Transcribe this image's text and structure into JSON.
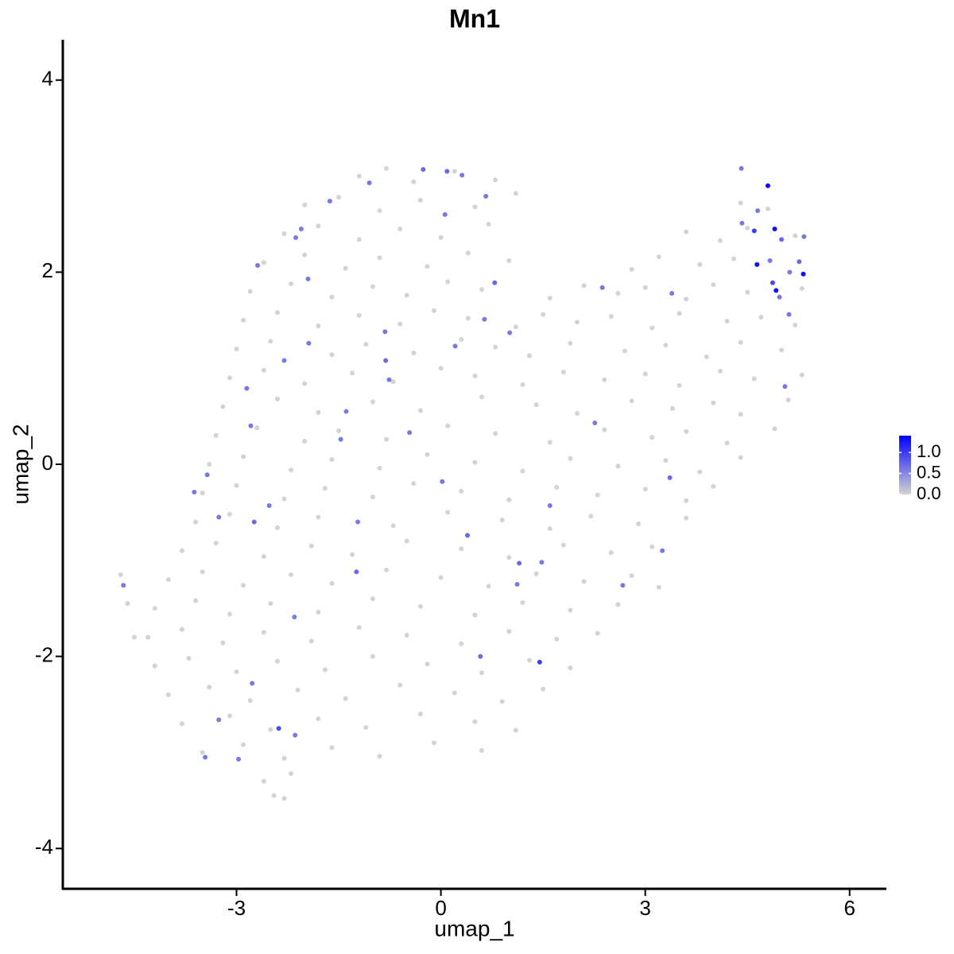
{
  "chart_data": {
    "type": "scatter",
    "title": "Mn1",
    "x_label": "umap_1",
    "y_label": "umap_2",
    "xlim": [
      -5.55,
      6.54
    ],
    "ylim": [
      -4.42,
      4.42
    ],
    "xticks": [
      -3,
      0,
      3,
      6
    ],
    "yticks": [
      -4,
      -2,
      0,
      2,
      4
    ],
    "color_low": "#d3d3d3",
    "color_high": "#0000ff",
    "colorbar_lim": [
      0,
      1.4
    ],
    "colorbar_ticks": [
      {
        "value": 0,
        "label": "0.0"
      },
      {
        "value": 0.5,
        "label": "0.5"
      },
      {
        "value": 1,
        "label": "1.0"
      }
    ],
    "x": [
      -1.2,
      -0.8,
      -0.4,
      0.2,
      0.8,
      -2.0,
      -1.5,
      -0.9,
      -0.3,
      0.5,
      1.1,
      4.4,
      4.8,
      -2.3,
      -1.8,
      -1.2,
      -0.6,
      0.0,
      0.7,
      3.6,
      4.1,
      4.5,
      5.2,
      -2.6,
      -2.0,
      -1.4,
      -0.9,
      -0.2,
      0.4,
      1.0,
      2.8,
      3.2,
      3.8,
      4.3,
      -2.8,
      -2.2,
      -1.6,
      -1.0,
      -0.5,
      0.1,
      0.6,
      1.6,
      2.1,
      2.6,
      3.0,
      3.6,
      4.0,
      4.5,
      5.3,
      -2.9,
      -2.4,
      -1.8,
      -1.2,
      -0.6,
      -0.1,
      0.4,
      1.1,
      1.5,
      2.0,
      2.5,
      3.1,
      3.5,
      4.2,
      4.7,
      5.2,
      -3.0,
      -2.5,
      -1.6,
      -1.1,
      -0.4,
      0.3,
      0.8,
      1.3,
      1.9,
      2.7,
      3.3,
      3.9,
      4.4,
      5.0,
      -3.1,
      -2.6,
      -2.0,
      -1.3,
      -0.7,
      0.0,
      0.5,
      1.2,
      1.8,
      2.4,
      3.0,
      3.5,
      4.1,
      4.6,
      5.3,
      -3.2,
      -2.4,
      -1.8,
      -1.0,
      -0.3,
      0.6,
      1.4,
      2.0,
      2.8,
      3.4,
      4.0,
      4.4,
      5.1,
      -3.3,
      -2.7,
      -2.0,
      -1.5,
      -0.8,
      0.1,
      0.8,
      1.6,
      2.4,
      3.1,
      3.6,
      4.2,
      4.9,
      -3.4,
      -2.9,
      -2.2,
      -1.6,
      -0.9,
      -0.2,
      0.5,
      1.2,
      1.9,
      2.6,
      3.3,
      3.8,
      4.4,
      -3.5,
      -3.0,
      -2.3,
      -1.7,
      -1.0,
      -0.4,
      0.3,
      1.0,
      1.7,
      2.3,
      3.0,
      3.6,
      4.0,
      -3.6,
      -3.1,
      -2.4,
      -1.8,
      -0.7,
      0.1,
      0.9,
      1.6,
      2.2,
      2.9,
      3.6,
      -3.8,
      -3.3,
      -2.6,
      -1.9,
      -1.3,
      -0.5,
      0.3,
      1.0,
      1.8,
      2.5,
      3.1,
      -4.0,
      -3.5,
      -2.9,
      -2.2,
      -1.6,
      -0.8,
      0.0,
      0.7,
      1.4,
      2.1,
      2.8,
      3.2,
      -4.2,
      -3.6,
      -3.1,
      -2.5,
      -1.8,
      -1.0,
      -0.3,
      0.5,
      1.2,
      1.9,
      2.6,
      -4.3,
      -3.8,
      -3.2,
      -2.6,
      -1.9,
      -1.2,
      -0.5,
      0.3,
      1.0,
      1.7,
      2.3,
      -4.2,
      -3.7,
      -3.0,
      -2.4,
      -1.7,
      -1.0,
      -0.2,
      0.6,
      1.3,
      1.9,
      -4.0,
      -3.4,
      -2.8,
      -2.1,
      -1.4,
      -0.6,
      0.2,
      0.9,
      1.5,
      -3.8,
      -3.1,
      -2.5,
      -1.8,
      -1.1,
      -0.3,
      0.5,
      1.1,
      -3.5,
      -2.9,
      -2.3,
      -1.6,
      -0.9,
      -0.1,
      0.6,
      -2.6,
      -2.2,
      -2.45,
      -2.3,
      -4.7,
      -4.6,
      -4.5,
      4.8,
      4.9,
      4.64,
      5.32,
      4.92,
      4.6,
      4.42,
      4.41,
      4.65,
      5.0,
      5.33,
      4.83,
      5.26,
      4.87,
      5.12,
      4.97,
      5.11,
      5.05,
      3.39,
      2.37,
      2.26,
      3.36,
      3.25,
      2.67,
      1.45,
      1.48,
      1.15,
      1.6,
      1.12,
      0.39,
      0.58,
      0.02,
      -0.46,
      0.21,
      1.01,
      0.64,
      0.79,
      0.06,
      -0.26,
      0.09,
      0.31,
      0.66,
      -1.05,
      -1.63,
      -0.82,
      -0.81,
      -0.76,
      -1.39,
      -1.47,
      -1.22,
      -1.24,
      -1.94,
      -2.3,
      -1.95,
      -2.13,
      -2.05,
      -2.69,
      -2.85,
      -2.79,
      -2.52,
      -2.74,
      -3.26,
      -3.43,
      -3.62,
      -4.66,
      -2.15,
      -2.77,
      -3.26,
      -3.46,
      -2.97,
      -2.38,
      -2.14
    ],
    "y": [
      3.0,
      3.08,
      2.94,
      3.05,
      2.96,
      2.7,
      2.78,
      2.64,
      2.75,
      2.68,
      2.82,
      2.72,
      2.66,
      2.4,
      2.48,
      2.34,
      2.45,
      2.36,
      2.5,
      2.42,
      2.33,
      2.46,
      2.38,
      2.1,
      2.18,
      2.04,
      2.15,
      2.06,
      2.2,
      2.12,
      2.03,
      2.16,
      2.08,
      2.14,
      1.8,
      1.88,
      1.74,
      1.85,
      1.76,
      1.9,
      1.82,
      1.73,
      1.86,
      1.78,
      1.84,
      1.72,
      1.87,
      1.79,
      1.83,
      1.5,
      1.58,
      1.44,
      1.55,
      1.46,
      1.6,
      1.52,
      1.43,
      1.56,
      1.48,
      1.54,
      1.42,
      1.57,
      1.49,
      1.53,
      1.45,
      1.2,
      1.28,
      1.14,
      1.25,
      1.16,
      1.3,
      1.22,
      1.13,
      1.26,
      1.18,
      1.24,
      1.12,
      1.27,
      1.19,
      0.9,
      0.98,
      0.84,
      0.95,
      0.86,
      1.0,
      0.92,
      0.83,
      0.96,
      0.88,
      0.94,
      0.82,
      0.97,
      0.89,
      0.93,
      0.6,
      0.68,
      0.54,
      0.65,
      0.56,
      0.7,
      0.62,
      0.53,
      0.66,
      0.58,
      0.64,
      0.52,
      0.67,
      0.3,
      0.38,
      0.24,
      0.35,
      0.26,
      0.4,
      0.32,
      0.23,
      0.36,
      0.28,
      0.34,
      0.22,
      0.37,
      0.0,
      0.08,
      -0.06,
      0.05,
      -0.04,
      0.1,
      0.02,
      -0.07,
      0.06,
      -0.02,
      0.04,
      -0.08,
      0.07,
      -0.3,
      -0.22,
      -0.36,
      -0.25,
      -0.34,
      -0.2,
      -0.28,
      -0.37,
      -0.24,
      -0.32,
      -0.26,
      -0.38,
      -0.23,
      -0.6,
      -0.52,
      -0.66,
      -0.55,
      -0.64,
      -0.5,
      -0.58,
      -0.67,
      -0.54,
      -0.62,
      -0.56,
      -0.9,
      -0.82,
      -0.96,
      -0.85,
      -0.94,
      -0.8,
      -0.88,
      -0.97,
      -0.84,
      -0.92,
      -0.86,
      -1.2,
      -1.12,
      -1.26,
      -1.15,
      -1.24,
      -1.1,
      -1.18,
      -1.27,
      -1.14,
      -1.22,
      -1.16,
      -1.28,
      -1.5,
      -1.42,
      -1.56,
      -1.45,
      -1.54,
      -1.4,
      -1.48,
      -1.57,
      -1.44,
      -1.52,
      -1.46,
      -1.8,
      -1.72,
      -1.86,
      -1.75,
      -1.84,
      -1.7,
      -1.78,
      -1.87,
      -1.74,
      -1.82,
      -1.76,
      -2.1,
      -2.02,
      -2.16,
      -2.05,
      -2.14,
      -2.0,
      -2.08,
      -2.17,
      -2.04,
      -2.12,
      -2.4,
      -2.32,
      -2.46,
      -2.35,
      -2.44,
      -2.3,
      -2.38,
      -2.47,
      -2.34,
      -2.7,
      -2.62,
      -2.76,
      -2.65,
      -2.74,
      -2.6,
      -2.68,
      -2.77,
      -3.0,
      -2.92,
      -3.06,
      -2.95,
      -3.04,
      -2.9,
      -2.98,
      -3.3,
      -3.22,
      -3.45,
      -3.48,
      -1.15,
      -1.45,
      -1.8,
      2.9,
      2.45,
      2.08,
      1.98,
      1.81,
      2.43,
      2.51,
      3.08,
      2.64,
      2.34,
      2.37,
      2.12,
      2.11,
      1.89,
      2.0,
      1.74,
      1.56,
      0.81,
      1.78,
      1.84,
      0.43,
      -0.14,
      -0.9,
      -1.26,
      -2.06,
      -1.02,
      -1.03,
      -0.43,
      -1.25,
      -0.74,
      -2.0,
      -0.18,
      0.33,
      1.23,
      1.37,
      1.51,
      1.89,
      2.6,
      3.07,
      3.05,
      3.01,
      2.79,
      2.93,
      2.74,
      1.38,
      1.08,
      0.88,
      0.55,
      0.26,
      -0.6,
      -1.12,
      1.26,
      1.08,
      1.93,
      2.36,
      2.45,
      2.07,
      0.79,
      0.4,
      -0.43,
      -0.6,
      -0.55,
      -0.11,
      -0.29,
      -1.26,
      -1.59,
      -2.28,
      -2.66,
      -3.05,
      -3.07,
      -2.75,
      -2.82
    ],
    "values": [
      0,
      0,
      0,
      0,
      0,
      0,
      0,
      0,
      0,
      0,
      0,
      0,
      0,
      0,
      0,
      0,
      0,
      0,
      0,
      0,
      0,
      0,
      0,
      0,
      0,
      0,
      0,
      0,
      0,
      0,
      0,
      0,
      0,
      0,
      0,
      0,
      0,
      0,
      0,
      0,
      0,
      0,
      0,
      0,
      0,
      0,
      0,
      0,
      0,
      0,
      0,
      0,
      0,
      0,
      0,
      0,
      0,
      0,
      0,
      0,
      0,
      0,
      0,
      0,
      0,
      0,
      0,
      0,
      0,
      0,
      0,
      0,
      0,
      0,
      0,
      0,
      0,
      0,
      0,
      0,
      0,
      0,
      0,
      0,
      0,
      0,
      0,
      0,
      0,
      0,
      0,
      0,
      0,
      0,
      0,
      0,
      0,
      0,
      0,
      0,
      0,
      0,
      0,
      0,
      0,
      0,
      0,
      0,
      0,
      0,
      0,
      0,
      0,
      0,
      0,
      0,
      0,
      0,
      0,
      0,
      0,
      0,
      0,
      0,
      0,
      0,
      0,
      0,
      0,
      0,
      0,
      0,
      0,
      0,
      0,
      0,
      0,
      0,
      0,
      0,
      0,
      0,
      0,
      0,
      0,
      0,
      0,
      0,
      0,
      0,
      0,
      0,
      0,
      0,
      0,
      0,
      0,
      0,
      0,
      0,
      0,
      0,
      0,
      0,
      0,
      0,
      0,
      0,
      0,
      0,
      0,
      0,
      0,
      0,
      0,
      0,
      0,
      0,
      0,
      0,
      0,
      0,
      0,
      0,
      0,
      0,
      0,
      0,
      0,
      0,
      0,
      0,
      0,
      0,
      0,
      0,
      0,
      0,
      0,
      0,
      0,
      0,
      0,
      0,
      0,
      0,
      0,
      0,
      0,
      0,
      0,
      0,
      0,
      0,
      0,
      0,
      0,
      0,
      0,
      0,
      0,
      0,
      0,
      0,
      0,
      0,
      0,
      0,
      0,
      0,
      0,
      0,
      0,
      0,
      0,
      0,
      0,
      0,
      0,
      0,
      0,
      0,
      0,
      1.35,
      1.3,
      1.3,
      1.3,
      1.3,
      1.0,
      0.6,
      0.6,
      0.6,
      0.7,
      0.6,
      0.6,
      0.7,
      0.9,
      0.6,
      0.6,
      0.6,
      0.6,
      0.6,
      0.6,
      0.6,
      0.7,
      0.6,
      0.6,
      1.0,
      0.6,
      0.7,
      0.6,
      0.6,
      0.7,
      0.7,
      0.6,
      0.6,
      0.6,
      0.6,
      0.6,
      0.7,
      0.6,
      0.7,
      0.7,
      0.6,
      0.6,
      0.6,
      0.6,
      0.6,
      0.7,
      0.6,
      0.6,
      0.6,
      0.6,
      0.7,
      0.6,
      0.6,
      0.6,
      0.6,
      0.6,
      0.6,
      0.6,
      0.6,
      0.6,
      0.7,
      0.6,
      0.6,
      0.6,
      0.6,
      0.6,
      0.6,
      0.6,
      0.6,
      0.6,
      0.9,
      0.6
    ]
  }
}
